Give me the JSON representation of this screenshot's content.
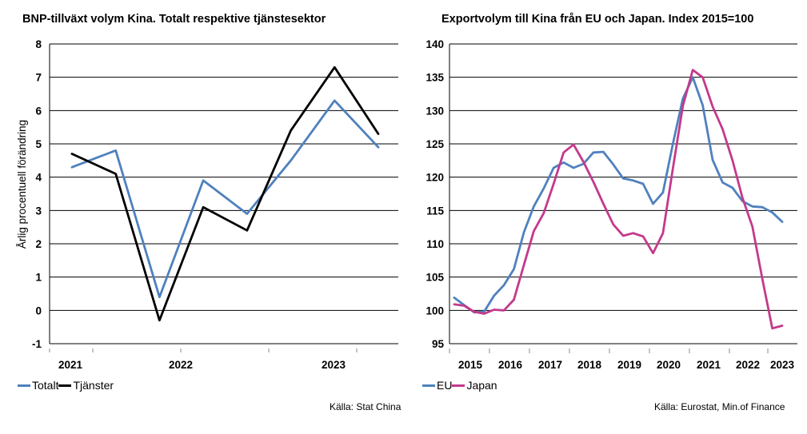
{
  "left": {
    "title": "BNP-tillväxt volym Kina. Totalt respektive tjänstesektor",
    "source": "Källa: Stat China",
    "chart_data": {
      "type": "line",
      "title": "BNP-tillväxt volym Kina. Totalt respektive tjänstesektor",
      "ylabel": "Årlig procentuell förändring",
      "xlabel": "",
      "ylim": [
        -1,
        8
      ],
      "yticks": [
        "-1",
        "0",
        "1",
        "2",
        "3",
        "4",
        "5",
        "6",
        "7",
        "8"
      ],
      "x_labels": [
        "2021",
        "2022",
        "2023"
      ],
      "legend_position": "bottom-left",
      "grid": "horizontal",
      "series": [
        {
          "name": "Totalt",
          "color": "#4f81bd",
          "values": [
            4.3,
            4.8,
            0.4,
            3.9,
            2.9,
            4.5,
            6.3,
            4.9
          ]
        },
        {
          "name": "Tjänster",
          "color": "#000000",
          "values": [
            4.7,
            4.1,
            -0.3,
            3.1,
            2.4,
            5.4,
            7.3,
            5.3
          ]
        }
      ]
    }
  },
  "right": {
    "title": "Exportvolym till Kina från EU och Japan. Index 2015=100",
    "source": "Källa: Eurostat, Min.of Finance",
    "chart_data": {
      "type": "line",
      "title": "Exportvolym till Kina från EU och Japan. Index 2015=100",
      "xlabel": "",
      "ylabel": "",
      "ylim": [
        95,
        140
      ],
      "yticks": [
        "95",
        "100",
        "105",
        "110",
        "115",
        "120",
        "125",
        "130",
        "135",
        "140"
      ],
      "x_labels": [
        "2015",
        "2016",
        "2017",
        "2018",
        "2019",
        "2020",
        "2021",
        "2022",
        "2023"
      ],
      "legend_position": "bottom-left",
      "grid": "horizontal",
      "series": [
        {
          "name": "EU",
          "color": "#4f81bd",
          "x": [
            2015.0,
            2015.25,
            2015.5,
            2015.75,
            2016.0,
            2016.25,
            2016.5,
            2016.75,
            2017.0,
            2017.25,
            2017.5,
            2017.75,
            2018.0,
            2018.25,
            2018.5,
            2018.75,
            2019.0,
            2019.25,
            2019.5,
            2019.75,
            2020.0,
            2020.25,
            2020.5,
            2020.75,
            2021.0,
            2021.25,
            2021.5,
            2021.75,
            2022.0,
            2022.25,
            2022.5,
            2022.75,
            2023.0,
            2023.25
          ],
          "values": [
            101.9,
            100.8,
            99.7,
            99.8,
            102.2,
            103.8,
            106.2,
            111.7,
            115.6,
            118.3,
            121.4,
            122.2,
            121.4,
            122.0,
            123.7,
            123.8,
            121.9,
            119.8,
            119.5,
            119.0,
            116.0,
            117.7,
            125.0,
            131.8,
            135.0,
            130.8,
            122.6,
            119.2,
            118.4,
            116.4,
            115.6,
            115.5,
            114.7,
            113.3
          ]
        },
        {
          "name": "Japan",
          "color": "#c4398c",
          "x": [
            2015.0,
            2015.25,
            2015.5,
            2015.75,
            2016.0,
            2016.25,
            2016.5,
            2016.75,
            2017.0,
            2017.25,
            2017.5,
            2017.75,
            2018.0,
            2018.25,
            2018.5,
            2018.75,
            2019.0,
            2019.25,
            2019.5,
            2019.75,
            2020.0,
            2020.25,
            2020.5,
            2020.75,
            2021.0,
            2021.25,
            2021.5,
            2021.75,
            2022.0,
            2022.25,
            2022.5,
            2022.75,
            2023.0,
            2023.25
          ],
          "values": [
            100.9,
            100.7,
            99.8,
            99.5,
            100.1,
            100.0,
            101.6,
            106.8,
            111.9,
            114.6,
            119.0,
            123.7,
            124.9,
            122.3,
            119.3,
            116.0,
            112.9,
            111.2,
            111.6,
            111.1,
            108.6,
            111.6,
            121.3,
            130.7,
            136.1,
            135.0,
            130.6,
            127.2,
            122.5,
            116.9,
            112.6,
            104.7,
            97.3,
            97.7
          ]
        }
      ]
    }
  }
}
